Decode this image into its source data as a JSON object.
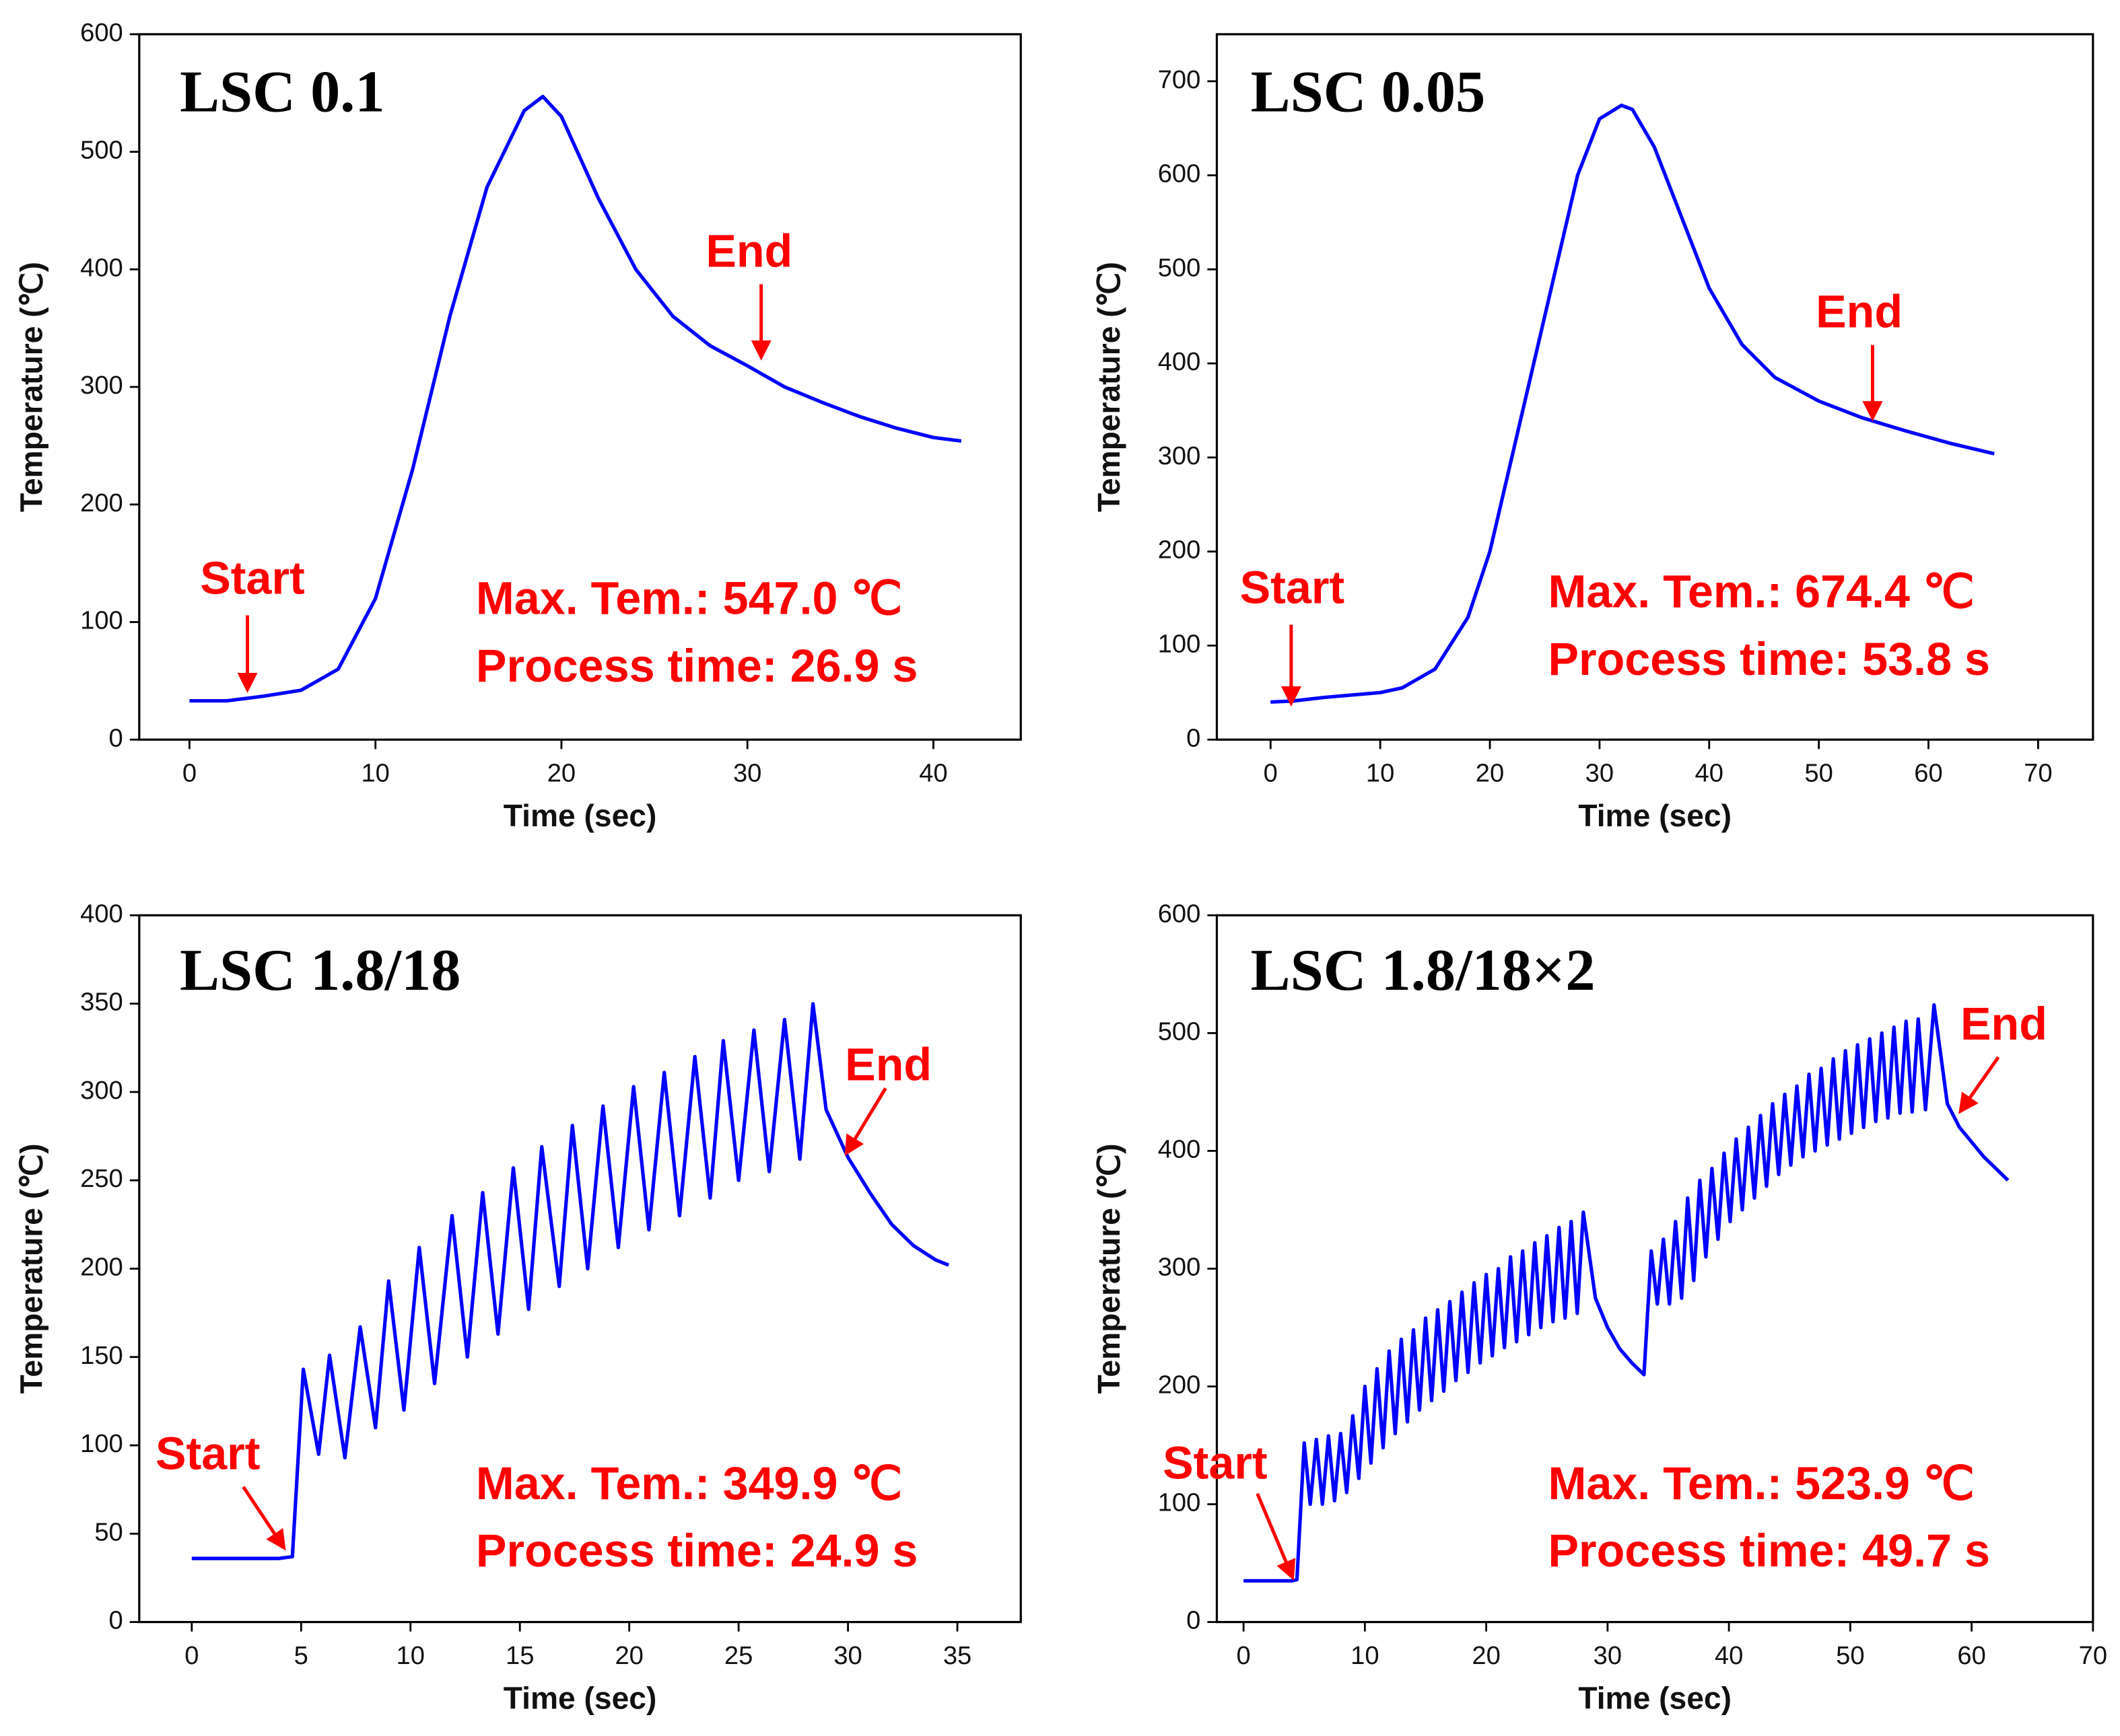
{
  "chart_data": [
    {
      "type": "line",
      "title": "LSC 0.1",
      "x_label": "Time (sec)",
      "y_label": "Temperature (℃)",
      "xlim": [
        -2.7,
        44.7
      ],
      "xticks": [
        0,
        10,
        20,
        30,
        40
      ],
      "ylim": [
        0,
        600
      ],
      "yticks": [
        0,
        100,
        200,
        300,
        400,
        500,
        600
      ],
      "color": "#0000ff",
      "x": [
        0,
        2,
        4,
        6,
        8,
        10,
        12,
        14,
        16,
        18,
        19,
        20,
        22,
        24,
        26,
        28,
        30,
        32,
        34,
        36,
        38,
        40,
        41.5
      ],
      "values": [
        33,
        33,
        37,
        42,
        60,
        120,
        230,
        360,
        470,
        535,
        547,
        530,
        460,
        400,
        360,
        335,
        318,
        300,
        287,
        275,
        265,
        257,
        254
      ],
      "annotations": [
        "Start",
        "End",
        "Max. Tem.: 547.0 ℃",
        "Process time: 26.9 s"
      ]
    },
    {
      "type": "line",
      "title": "LSC 0.05",
      "x_label": "Time (sec)",
      "y_label": "Temperature (℃)",
      "xlim": [
        -4.9,
        75
      ],
      "xticks": [
        0,
        10,
        20,
        30,
        40,
        50,
        60,
        70
      ],
      "ylim": [
        0,
        750
      ],
      "yticks": [
        0,
        100,
        200,
        300,
        400,
        500,
        600,
        700
      ],
      "color": "#0000ff",
      "x": [
        0,
        2,
        5,
        10,
        12,
        15,
        18,
        20,
        22,
        24,
        26,
        28,
        30,
        32,
        33,
        35,
        38,
        40,
        43,
        46,
        50,
        54,
        58,
        62,
        66
      ],
      "values": [
        40,
        41,
        45,
        50,
        55,
        75,
        130,
        200,
        300,
        400,
        500,
        600,
        660,
        674.4,
        670,
        630,
        540,
        480,
        420,
        385,
        360,
        342,
        328,
        315,
        304
      ],
      "annotations": [
        "Start",
        "End",
        "Max. Tem.: 674.4 ℃",
        "Process time: 53.8 s"
      ]
    },
    {
      "type": "line",
      "title": "LSC 1.8/18",
      "x_label": "Time (sec)",
      "y_label": "Temperature (℃)",
      "xlim": [
        -2.4,
        37.9
      ],
      "xticks": [
        0,
        5,
        10,
        15,
        20,
        25,
        30,
        35
      ],
      "ylim": [
        0,
        400
      ],
      "yticks": [
        0,
        50,
        100,
        150,
        200,
        250,
        300,
        350,
        400
      ],
      "color": "#0000ff",
      "x": [
        0,
        2,
        4,
        4.6,
        5.1,
        5.8,
        6.3,
        7.0,
        7.7,
        8.4,
        9.0,
        9.7,
        10.4,
        11.1,
        11.9,
        12.6,
        13.3,
        14.0,
        14.7,
        15.4,
        16.0,
        16.8,
        17.4,
        18.1,
        18.8,
        19.5,
        20.2,
        20.9,
        21.6,
        22.3,
        23.0,
        23.7,
        24.3,
        25.0,
        25.7,
        26.4,
        27.1,
        27.8,
        28.4,
        29,
        30,
        31,
        32,
        33,
        34,
        34.6
      ],
      "values": [
        36,
        36,
        36,
        37,
        143,
        95,
        151,
        93,
        167,
        110,
        193,
        120,
        212,
        135,
        230,
        150,
        243,
        163,
        257,
        177,
        269,
        190,
        281,
        200,
        292,
        212,
        303,
        222,
        311,
        230,
        320,
        240,
        329,
        250,
        335,
        255,
        341,
        262,
        349.9,
        290,
        263,
        243,
        225,
        213,
        205,
        202
      ],
      "annotations": [
        "Start",
        "End",
        "Max. Tem.: 349.9 ℃",
        "Process time: 24.9 s"
      ]
    },
    {
      "type": "line",
      "title": "LSC 1.8/18×2",
      "x_label": "Time (sec)",
      "y_label": "Temperature (℃)",
      "xlim": [
        -2.2,
        70
      ],
      "xticks": [
        0,
        10,
        20,
        30,
        40,
        50,
        60,
        70
      ],
      "ylim": [
        0,
        600
      ],
      "yticks": [
        0,
        100,
        200,
        300,
        400,
        500,
        600
      ],
      "color": "#0000ff",
      "x": [
        0,
        2,
        4,
        4.4,
        5,
        5.5,
        6,
        6.5,
        7,
        7.5,
        8,
        8.5,
        9,
        9.5,
        10,
        10.5,
        11,
        11.5,
        12,
        12.5,
        13,
        13.5,
        14,
        14.5,
        15,
        15.5,
        16,
        16.5,
        17,
        17.5,
        18,
        18.5,
        19,
        19.5,
        20,
        20.5,
        21,
        21.5,
        22,
        22.5,
        23,
        23.5,
        24,
        24.5,
        25,
        25.5,
        26,
        26.5,
        27,
        27.5,
        28,
        29,
        30,
        31,
        32,
        33,
        33.6,
        34.1,
        34.6,
        35.1,
        35.6,
        36.1,
        36.6,
        37.1,
        37.6,
        38.1,
        38.6,
        39.1,
        39.6,
        40.1,
        40.6,
        41.1,
        41.6,
        42.1,
        42.6,
        43.1,
        43.6,
        44.1,
        44.6,
        45.1,
        45.6,
        46.1,
        46.6,
        47.1,
        47.6,
        48.1,
        48.6,
        49.1,
        49.6,
        50.1,
        50.6,
        51.1,
        51.6,
        52.1,
        52.6,
        53.1,
        53.6,
        54.1,
        54.6,
        55.1,
        55.6,
        56.2,
        56.9,
        58,
        59,
        61,
        63
      ],
      "values": [
        35,
        35,
        35,
        36,
        152,
        100,
        155,
        100,
        158,
        103,
        160,
        110,
        175,
        122,
        200,
        135,
        215,
        148,
        230,
        160,
        240,
        170,
        248,
        180,
        258,
        188,
        265,
        196,
        272,
        205,
        280,
        212,
        288,
        220,
        295,
        226,
        300,
        233,
        310,
        238,
        315,
        244,
        322,
        250,
        328,
        255,
        335,
        258,
        340,
        262,
        348,
        275,
        250,
        232,
        220,
        210,
        315,
        270,
        325,
        270,
        340,
        275,
        360,
        290,
        375,
        310,
        385,
        325,
        398,
        340,
        410,
        350,
        420,
        360,
        430,
        370,
        440,
        380,
        448,
        388,
        455,
        395,
        465,
        400,
        470,
        405,
        478,
        410,
        485,
        415,
        490,
        420,
        495,
        425,
        500,
        428,
        505,
        432,
        510,
        433,
        512,
        435,
        523.9,
        440,
        420,
        395,
        375
      ],
      "annotations": [
        "Start",
        "End",
        "Max. Tem.: 523.9 ℃",
        "Process time: 49.7 s"
      ]
    }
  ]
}
